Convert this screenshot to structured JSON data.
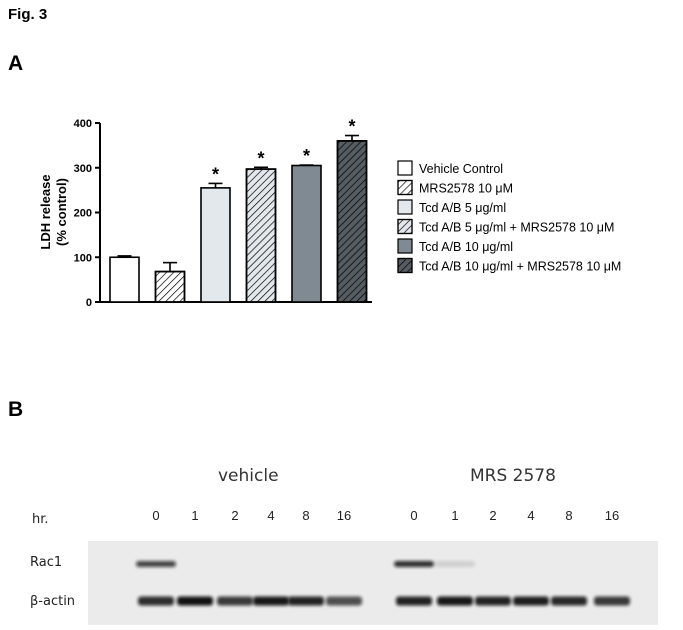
{
  "figure_label": "Fig. 3",
  "panels": {
    "a_letter": "A",
    "b_letter": "B"
  },
  "chart_data": {
    "type": "bar",
    "ylabel_line1": "LDH release",
    "ylabel_line2": "(% control)",
    "ylim": [
      0,
      400
    ],
    "yticks": [
      0,
      100,
      200,
      300,
      400
    ],
    "legend_position": "right",
    "bars": [
      {
        "label": "Vehicle Control",
        "value": 100,
        "error": 3,
        "significant": false,
        "fill": "#ffffff",
        "hatch": false
      },
      {
        "label": "MRS2578 10 μM",
        "value": 68,
        "error": 20,
        "significant": false,
        "fill": "#ffffff",
        "hatch": true
      },
      {
        "label": "Tcd A/B 5 μg/ml",
        "value": 255,
        "error": 10,
        "significant": true,
        "fill": "#e3e8ec",
        "hatch": false
      },
      {
        "label": "Tcd A/B 5 μg/ml + MRS2578 10 μM",
        "value": 297,
        "error": 4,
        "significant": true,
        "fill": "#e3e8ec",
        "hatch": true
      },
      {
        "label": "Tcd A/B 10 μg/ml",
        "value": 305,
        "error": 1,
        "significant": true,
        "fill": "#7f8a93",
        "hatch": false
      },
      {
        "label": "Tcd A/B 10 μg/ml + MRS2578 10 μM",
        "value": 360,
        "error": 12,
        "significant": true,
        "fill": "#555c62",
        "hatch": true
      }
    ],
    "significance_marker": "*"
  },
  "blot": {
    "group_vehicle": "vehicle",
    "group_mrs": "MRS 2578",
    "hr_label": "hr.",
    "timepoints": [
      "0",
      "1",
      "2",
      "4",
      "8",
      "16"
    ],
    "rows": [
      {
        "label": "Rac1",
        "intensity_vehicle": [
          0.75,
          0,
          0,
          0,
          0,
          0
        ],
        "intensity_mrs": [
          0.85,
          0.12,
          0,
          0,
          0,
          0
        ]
      },
      {
        "label": "β-actin",
        "intensity_vehicle": [
          0.85,
          0.98,
          0.8,
          0.95,
          0.9,
          0.7
        ],
        "intensity_mrs": [
          0.9,
          0.95,
          0.9,
          0.92,
          0.88,
          0.8
        ]
      }
    ]
  }
}
